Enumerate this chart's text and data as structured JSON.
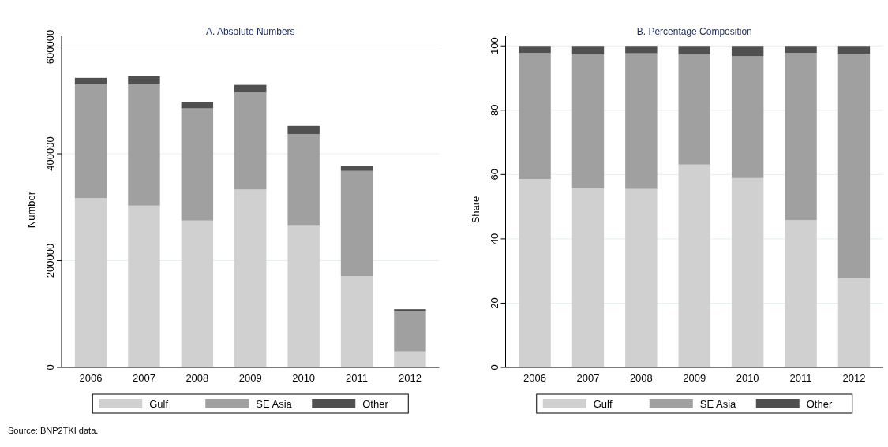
{
  "chart_data": [
    {
      "type": "bar",
      "title": "A. Absolute Numbers",
      "ylabel": "Number",
      "categories": [
        "2006",
        "2007",
        "2008",
        "2009",
        "2010",
        "2011",
        "2012"
      ],
      "stacked": true,
      "ylim": [
        0,
        620000
      ],
      "yticks": [
        0,
        200000,
        400000,
        600000
      ],
      "grid": "y",
      "legend": "bottom",
      "annotations": [
        "Source: BNP2TKI data."
      ],
      "series": [
        {
          "name": "Gulf",
          "color": "#d0d0d0",
          "values": [
            317000,
            303000,
            275000,
            333000,
            265000,
            171000,
            30000
          ]
        },
        {
          "name": "SE Asia",
          "color": "#a0a0a0",
          "values": [
            213000,
            227000,
            210000,
            182000,
            172000,
            197000,
            76000
          ]
        },
        {
          "name": "Other",
          "color": "#505050",
          "values": [
            12000,
            15000,
            12000,
            14000,
            15000,
            9000,
            3000
          ]
        }
      ]
    },
    {
      "type": "bar",
      "title": "B. Percentage Composition",
      "ylabel": "Share",
      "categories": [
        "2006",
        "2007",
        "2008",
        "2009",
        "2010",
        "2011",
        "2012"
      ],
      "stacked": true,
      "ylim": [
        0,
        103
      ],
      "yticks": [
        0,
        20,
        40,
        60,
        80,
        100
      ],
      "grid": "y",
      "legend": "bottom",
      "series": [
        {
          "name": "Gulf",
          "color": "#d0d0d0",
          "values": [
            58.6,
            55.7,
            55.5,
            63.1,
            58.9,
            45.8,
            27.8
          ]
        },
        {
          "name": "SE Asia",
          "color": "#a0a0a0",
          "values": [
            39.2,
            41.6,
            42.2,
            34.2,
            37.9,
            52.0,
            69.8
          ]
        },
        {
          "name": "Other",
          "color": "#505050",
          "values": [
            2.2,
            2.7,
            2.3,
            2.7,
            3.2,
            2.2,
            2.4
          ]
        }
      ]
    }
  ]
}
